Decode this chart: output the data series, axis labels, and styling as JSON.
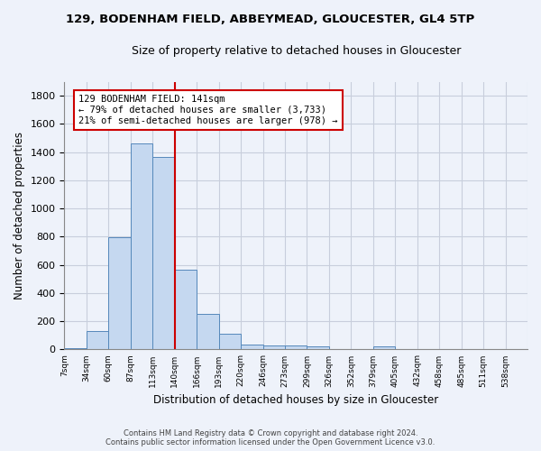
{
  "title": "129, BODENHAM FIELD, ABBEYMEAD, GLOUCESTER, GL4 5TP",
  "subtitle": "Size of property relative to detached houses in Gloucester",
  "xlabel": "Distribution of detached houses by size in Gloucester",
  "ylabel": "Number of detached properties",
  "bar_color": "#c5d8f0",
  "bar_edge_color": "#5588bb",
  "background_color": "#eef2fa",
  "grid_color": "#c8cedc",
  "bin_labels": [
    "7sqm",
    "34sqm",
    "60sqm",
    "87sqm",
    "113sqm",
    "140sqm",
    "166sqm",
    "193sqm",
    "220sqm",
    "246sqm",
    "273sqm",
    "299sqm",
    "326sqm",
    "352sqm",
    "379sqm",
    "405sqm",
    "432sqm",
    "458sqm",
    "485sqm",
    "511sqm",
    "538sqm"
  ],
  "bar_values": [
    10,
    130,
    795,
    1465,
    1365,
    565,
    250,
    110,
    35,
    30,
    30,
    20,
    0,
    0,
    20,
    0,
    0,
    0,
    0,
    0,
    0
  ],
  "ylim": [
    0,
    1900
  ],
  "yticks": [
    0,
    200,
    400,
    600,
    800,
    1000,
    1200,
    1400,
    1600,
    1800
  ],
  "property_line_bin": 4.5,
  "annotation_text": "129 BODENHAM FIELD: 141sqm\n← 79% of detached houses are smaller (3,733)\n21% of semi-detached houses are larger (978) →",
  "annotation_box_color": "#ffffff",
  "annotation_box_edge_color": "#cc0000",
  "footer_line1": "Contains HM Land Registry data © Crown copyright and database right 2024.",
  "footer_line2": "Contains public sector information licensed under the Open Government Licence v3.0."
}
